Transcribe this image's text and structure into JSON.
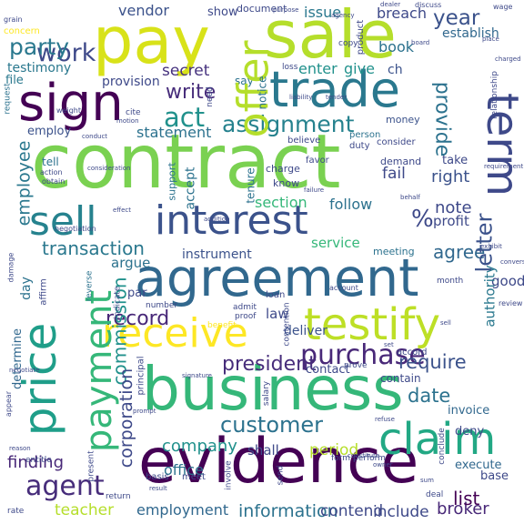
{
  "colors": {
    "background": "#ffffff",
    "palette": [
      "#440154",
      "#46327e",
      "#365c8d",
      "#277f8e",
      "#1fa187",
      "#4ac16d",
      "#a0da39",
      "#fde725"
    ]
  },
  "words": [
    {
      "text": "contract",
      "color": "#7ad151"
    },
    {
      "text": "business",
      "color": "#35b779"
    },
    {
      "text": "evidence",
      "color": "#440154"
    },
    {
      "text": "agreement",
      "color": "#31688e"
    },
    {
      "text": "sale",
      "color": "#b5de2b"
    },
    {
      "text": "pay",
      "color": "#d8e219"
    },
    {
      "text": "interest",
      "color": "#3b528b"
    },
    {
      "text": "trade",
      "color": "#2a788e"
    },
    {
      "text": "sign",
      "color": "#440154"
    },
    {
      "text": "price",
      "color": "#1f9e89"
    },
    {
      "text": "testify",
      "color": "#bddf26"
    },
    {
      "text": "receive",
      "color": "#fde725"
    },
    {
      "text": "offer",
      "color": "#b5de2b"
    },
    {
      "text": "term",
      "color": "#3e4989"
    },
    {
      "text": "sell",
      "color": "#26828e"
    },
    {
      "text": "claim",
      "color": "#22a884"
    },
    {
      "text": "payment",
      "color": "#35b779"
    },
    {
      "text": "purchase",
      "color": "#482878"
    },
    {
      "text": "customer",
      "color": "#2c728e"
    },
    {
      "text": "agent",
      "color": "#472d7b"
    },
    {
      "text": "assignment",
      "color": "#26828e"
    },
    {
      "text": "work",
      "color": "#3e4989"
    },
    {
      "text": "party",
      "color": "#2a788e"
    },
    {
      "text": "act",
      "color": "#21918c"
    },
    {
      "text": "write",
      "color": "#472d7b"
    },
    {
      "text": "provide",
      "color": "#2c728e"
    },
    {
      "text": "letter",
      "color": "#3b528b"
    },
    {
      "text": "transaction",
      "color": "#2a788e"
    },
    {
      "text": "employee",
      "color": "#2a788e"
    },
    {
      "text": "commission",
      "color": "#21918c"
    },
    {
      "text": "corporation",
      "color": "#3e4989"
    },
    {
      "text": "record",
      "color": "#482878"
    },
    {
      "text": "president",
      "color": "#472d7b"
    },
    {
      "text": "company",
      "color": "#21918c"
    },
    {
      "text": "information",
      "color": "#2c728e"
    },
    {
      "text": "employment",
      "color": "#31688e"
    },
    {
      "text": "teacher",
      "color": "#b5de2b"
    },
    {
      "text": "year",
      "color": "#3b528b"
    },
    {
      "text": "agree",
      "color": "#31688e"
    },
    {
      "text": "require",
      "color": "#3b528b"
    },
    {
      "text": "date",
      "color": "#2c728e"
    },
    {
      "text": "secret",
      "color": "#46327e"
    },
    {
      "text": "enter",
      "color": "#21918c"
    },
    {
      "text": "give",
      "color": "#21918c"
    },
    {
      "text": "statement",
      "color": "#2c728e"
    },
    {
      "text": "section",
      "color": "#35b779"
    },
    {
      "text": "note",
      "color": "#3e4989"
    },
    {
      "text": "follow",
      "color": "#2c728e"
    },
    {
      "text": "%",
      "color": "#3e4989"
    },
    {
      "text": "finding",
      "color": "#482878"
    },
    {
      "text": "period",
      "color": "#b5de2b"
    },
    {
      "text": "include",
      "color": "#3e4989"
    },
    {
      "text": "broker",
      "color": "#482878"
    },
    {
      "text": "list",
      "color": "#440154"
    },
    {
      "text": "office",
      "color": "#2c728e"
    },
    {
      "text": "contend",
      "color": "#3e4989"
    },
    {
      "text": "testimony",
      "color": "#2a788e"
    },
    {
      "text": "vendor",
      "color": "#3b528b"
    },
    {
      "text": "issue",
      "color": "#2a788e"
    },
    {
      "text": "breach",
      "color": "#3e4989"
    },
    {
      "text": "book",
      "color": "#2c728e"
    },
    {
      "text": "service",
      "color": "#35b779"
    },
    {
      "text": "instrument",
      "color": "#3b528b"
    },
    {
      "text": "right",
      "color": "#3b528b"
    },
    {
      "text": "profit",
      "color": "#3e4989"
    },
    {
      "text": "fail",
      "color": "#3e4989"
    },
    {
      "text": "accept",
      "color": "#2c728e"
    },
    {
      "text": "employ",
      "color": "#3b528b"
    },
    {
      "text": "document",
      "color": "#3e4989"
    },
    {
      "text": "show",
      "color": "#3e4989"
    },
    {
      "text": "establish",
      "color": "#31688e"
    },
    {
      "text": "file",
      "color": "#2a788e"
    },
    {
      "text": "provision",
      "color": "#3e4989"
    },
    {
      "text": "ch",
      "color": "#3b528b"
    },
    {
      "text": "argue",
      "color": "#2c728e"
    },
    {
      "text": "law",
      "color": "#3e4989"
    },
    {
      "text": "good",
      "color": "#3e4989"
    },
    {
      "text": "authority",
      "color": "#2a788e"
    },
    {
      "text": "shall",
      "color": "#3e4989"
    },
    {
      "text": "contact",
      "color": "#3e4989"
    },
    {
      "text": "deliver",
      "color": "#3b528b"
    },
    {
      "text": "day",
      "color": "#2c728e"
    },
    {
      "text": "determine",
      "color": "#31688e"
    },
    {
      "text": "invoice",
      "color": "#31688e"
    },
    {
      "text": "deny",
      "color": "#3e4989"
    },
    {
      "text": "execute",
      "color": "#31688e"
    },
    {
      "text": "base",
      "color": "#3e4989"
    },
    {
      "text": "contain",
      "color": "#3e4989"
    },
    {
      "text": "meeting",
      "color": "#2c728e"
    },
    {
      "text": "par",
      "color": "#3e4989"
    },
    {
      "text": "money",
      "color": "#3b528b"
    },
    {
      "text": "take",
      "color": "#3e4989"
    },
    {
      "text": "demand",
      "color": "#3e4989"
    },
    {
      "text": "say",
      "color": "#2c728e"
    },
    {
      "text": "notice",
      "color": "#2c728e"
    },
    {
      "text": "tell",
      "color": "#2c728e"
    },
    {
      "text": "support",
      "color": "#2c728e"
    },
    {
      "text": "tenure",
      "color": "#2c728e"
    },
    {
      "text": "charge",
      "color": "#3e4989"
    },
    {
      "text": "know",
      "color": "#3e4989"
    },
    {
      "text": "favor",
      "color": "#3e4989"
    },
    {
      "text": "consider",
      "color": "#3e4989"
    },
    {
      "text": "believe",
      "color": "#3e4989"
    },
    {
      "text": "duty",
      "color": "#3e4989"
    },
    {
      "text": "person",
      "color": "#2c728e"
    },
    {
      "text": "loss",
      "color": "#3e4989"
    },
    {
      "text": "product",
      "color": "#3e4989"
    },
    {
      "text": "copy",
      "color": "#3e4989"
    },
    {
      "text": "concern",
      "color": "#fde725"
    },
    {
      "text": "request",
      "color": "#2c728e"
    },
    {
      "text": "reverse",
      "color": "#2c728e"
    },
    {
      "text": "affirm",
      "color": "#3e4989"
    },
    {
      "text": "indicate",
      "color": "#3e4989"
    },
    {
      "text": "number",
      "color": "#3e4989"
    },
    {
      "text": "benefit",
      "color": "#fde725"
    },
    {
      "text": "admit",
      "color": "#3e4989"
    },
    {
      "text": "proof",
      "color": "#3e4989"
    },
    {
      "text": "loan",
      "color": "#3e4989"
    },
    {
      "text": "month",
      "color": "#3e4989"
    },
    {
      "text": "accord",
      "color": "#3e4989"
    },
    {
      "text": "prove",
      "color": "#3e4989"
    },
    {
      "text": "perform",
      "color": "#3e4989"
    },
    {
      "text": "form",
      "color": "#3e4989"
    },
    {
      "text": "send",
      "color": "#3e4989"
    },
    {
      "text": "meet",
      "color": "#3e4989"
    },
    {
      "text": "basis",
      "color": "#3e4989"
    },
    {
      "text": "deal",
      "color": "#3e4989"
    },
    {
      "text": "return",
      "color": "#3e4989"
    },
    {
      "text": "entitle",
      "color": "#3e4989"
    },
    {
      "text": "rate",
      "color": "#3e4989"
    },
    {
      "text": "present",
      "color": "#3e4989"
    },
    {
      "text": "principal",
      "color": "#3e4989"
    },
    {
      "text": "involve",
      "color": "#3e4989"
    },
    {
      "text": "salary",
      "color": "#3e4989"
    },
    {
      "text": "conclude",
      "color": "#3e4989"
    },
    {
      "text": "relationship",
      "color": "#3e4989"
    },
    {
      "text": "wage",
      "color": "#3e4989"
    },
    {
      "text": "grain",
      "color": "#3e4989"
    },
    {
      "text": "weight",
      "color": "#3e4989"
    },
    {
      "text": "obtain",
      "color": "#3e4989"
    },
    {
      "text": "action",
      "color": "#3e4989"
    },
    {
      "text": "negotiation",
      "color": "#3e4989"
    },
    {
      "text": "decision",
      "color": "#3e4989"
    },
    {
      "text": "contention",
      "color": "#3e4989"
    },
    {
      "text": "need",
      "color": "#3e4989"
    },
    {
      "text": "account",
      "color": "#3e4989"
    },
    {
      "text": "discuss",
      "color": "#3e4989"
    },
    {
      "text": "agency",
      "color": "#3e4989"
    },
    {
      "text": "board",
      "color": "#3e4989"
    },
    {
      "text": "tender",
      "color": "#3e4989"
    },
    {
      "text": "liability",
      "color": "#3e4989"
    },
    {
      "text": "failure",
      "color": "#3e4989"
    },
    {
      "text": "purpose",
      "color": "#3e4989"
    },
    {
      "text": "conduct",
      "color": "#3e4989"
    },
    {
      "text": "appear",
      "color": "#3e4989"
    },
    {
      "text": "damage",
      "color": "#3e4989"
    },
    {
      "text": "negotiate",
      "color": "#3e4989"
    },
    {
      "text": "reason",
      "color": "#3e4989"
    },
    {
      "text": "sum",
      "color": "#3e4989"
    },
    {
      "text": "refuse",
      "color": "#3e4989"
    },
    {
      "text": "owner",
      "color": "#3e4989"
    },
    {
      "text": "sell",
      "color": "#3e4989"
    },
    {
      "text": "review",
      "color": "#3e4989"
    },
    {
      "text": "requirement",
      "color": "#3e4989"
    },
    {
      "text": "consideration",
      "color": "#3e4989"
    },
    {
      "text": "constitute",
      "color": "#3e4989"
    },
    {
      "text": "dealer",
      "color": "#3e4989"
    },
    {
      "text": "behalf",
      "color": "#3e4989"
    },
    {
      "text": "addition",
      "color": "#3e4989"
    },
    {
      "text": "motion",
      "color": "#3e4989"
    },
    {
      "text": "set",
      "color": "#3e4989"
    },
    {
      "text": "cite",
      "color": "#3e4989"
    },
    {
      "text": "effect",
      "color": "#3e4989"
    },
    {
      "text": "signature",
      "color": "#3e4989"
    },
    {
      "text": "exhibit",
      "color": "#3e4989"
    },
    {
      "text": "result",
      "color": "#3e4989"
    },
    {
      "text": "charged",
      "color": "#3e4989"
    },
    {
      "text": "place",
      "color": "#3e4989"
    },
    {
      "text": "conversation",
      "color": "#3e4989"
    },
    {
      "text": "prompt",
      "color": "#3e4989"
    }
  ]
}
